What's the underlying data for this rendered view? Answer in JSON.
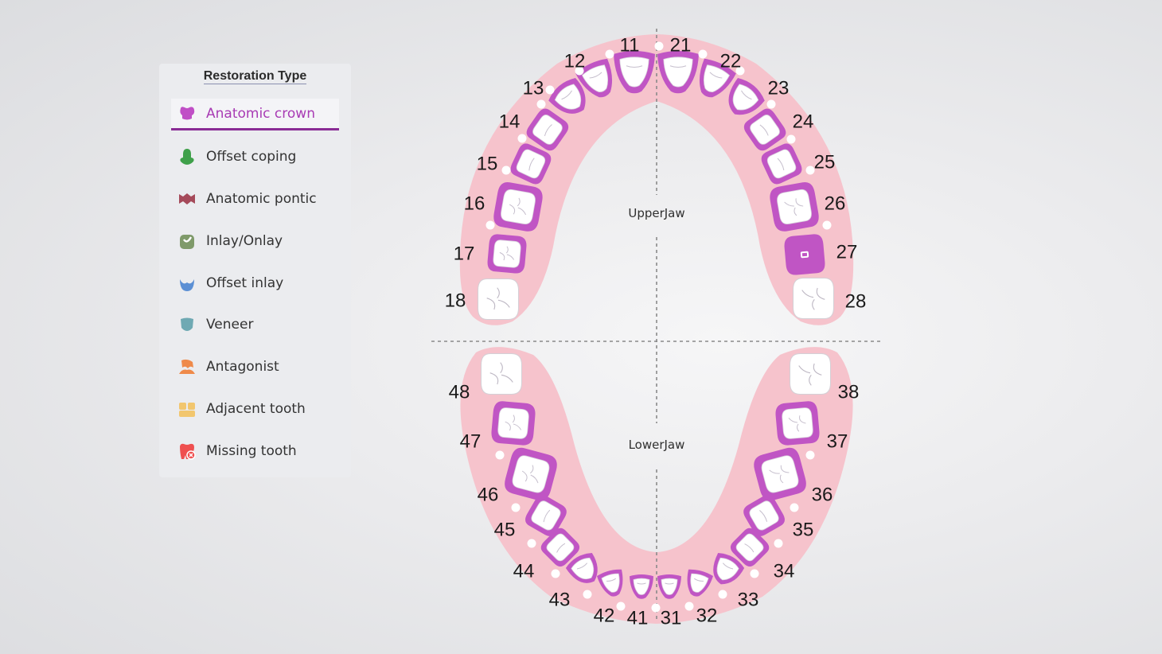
{
  "panel": {
    "title": "Restoration Type",
    "items": [
      {
        "label": "Anatomic crown",
        "icon": "anatomic-crown-icon",
        "color": "#c04fc6",
        "active": true
      },
      {
        "label": "Offset coping",
        "icon": "offset-coping-icon",
        "color": "#3fa04a",
        "active": false
      },
      {
        "label": "Anatomic pontic",
        "icon": "anatomic-pontic-icon",
        "color": "#a54a5a",
        "active": false
      },
      {
        "label": "Inlay/Onlay",
        "icon": "inlay-onlay-icon",
        "color": "#7f9a6a",
        "active": false
      },
      {
        "label": "Offset inlay",
        "icon": "offset-inlay-icon",
        "color": "#5b8fd4",
        "active": false
      },
      {
        "label": "Veneer",
        "icon": "veneer-icon",
        "color": "#6fa9b3",
        "active": false
      },
      {
        "label": "Antagonist",
        "icon": "antagonist-icon",
        "color": "#ef8a4a",
        "active": false
      },
      {
        "label": "Adjacent tooth",
        "icon": "adjacent-tooth-icon",
        "color": "#f2c66e",
        "active": false
      },
      {
        "label": "Missing tooth",
        "icon": "missing-tooth-icon",
        "color": "#ef5050",
        "active": false
      }
    ]
  },
  "jaws": {
    "upper_label": "UpperJaw",
    "lower_label": "LowerJaw"
  },
  "teeth": {
    "upper": [
      {
        "num": "11",
        "state": "crown"
      },
      {
        "num": "12",
        "state": "crown"
      },
      {
        "num": "13",
        "state": "crown"
      },
      {
        "num": "14",
        "state": "crown"
      },
      {
        "num": "15",
        "state": "crown"
      },
      {
        "num": "16",
        "state": "crown"
      },
      {
        "num": "17",
        "state": "crown"
      },
      {
        "num": "18",
        "state": "none"
      },
      {
        "num": "21",
        "state": "crown"
      },
      {
        "num": "22",
        "state": "crown"
      },
      {
        "num": "23",
        "state": "crown"
      },
      {
        "num": "24",
        "state": "crown"
      },
      {
        "num": "25",
        "state": "crown"
      },
      {
        "num": "26",
        "state": "crown"
      },
      {
        "num": "27",
        "state": "crown-prep"
      },
      {
        "num": "28",
        "state": "none"
      }
    ],
    "lower": [
      {
        "num": "31",
        "state": "crown"
      },
      {
        "num": "32",
        "state": "crown"
      },
      {
        "num": "33",
        "state": "crown"
      },
      {
        "num": "34",
        "state": "crown"
      },
      {
        "num": "35",
        "state": "crown"
      },
      {
        "num": "36",
        "state": "crown"
      },
      {
        "num": "37",
        "state": "crown"
      },
      {
        "num": "38",
        "state": "none"
      },
      {
        "num": "41",
        "state": "crown"
      },
      {
        "num": "42",
        "state": "crown"
      },
      {
        "num": "43",
        "state": "crown"
      },
      {
        "num": "44",
        "state": "crown"
      },
      {
        "num": "45",
        "state": "crown"
      },
      {
        "num": "46",
        "state": "crown"
      },
      {
        "num": "47",
        "state": "crown"
      },
      {
        "num": "48",
        "state": "none"
      }
    ]
  },
  "colors": {
    "gum": "#f6c3cc",
    "crown": "#c055c4",
    "tooth": "#ffffff",
    "active": "#8a2c95"
  }
}
